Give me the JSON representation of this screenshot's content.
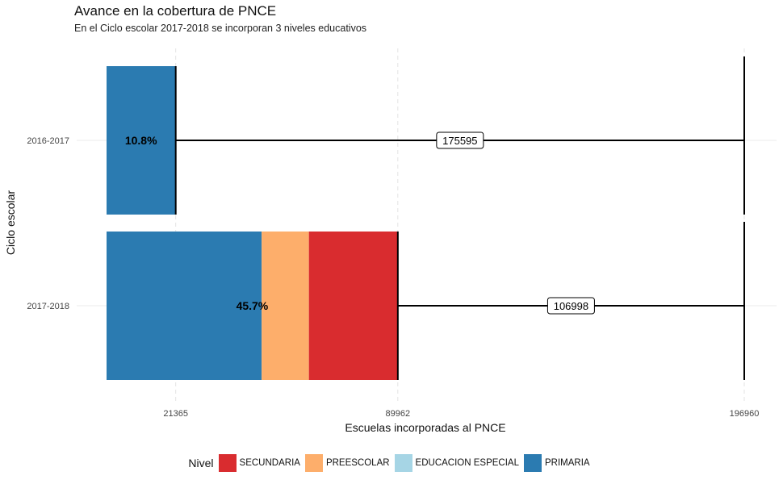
{
  "chart_data": {
    "type": "bar",
    "orientation": "horizontal",
    "stacked": true,
    "title": "Avance en la cobertura de PNCE",
    "subtitle": "En el Ciclo escolar 2017-2018 se incorporan 3 niveles educativos",
    "xlabel": "Escuelas incorporadas al PNCE",
    "ylabel": "Ciclo escolar",
    "xlim": [
      0,
      196960
    ],
    "x_ticks": [
      "21365",
      "89962",
      "196960"
    ],
    "categories": [
      "2016-2017",
      "2017-2018"
    ],
    "series": [
      {
        "name": "PRIMARIA",
        "color": "#2b7bb1",
        "values": [
          21365,
          47900
        ]
      },
      {
        "name": "PREESCOLAR",
        "color": "#fdae6b",
        "values": [
          0,
          14600
        ]
      },
      {
        "name": "EDUCACION ESPECIAL",
        "color": "#a6d5e5",
        "values": [
          0,
          0
        ]
      },
      {
        "name": "SECUNDARIA",
        "color": "#d92c2f",
        "values": [
          0,
          27462
        ]
      }
    ],
    "totals": [
      21365,
      89962
    ],
    "target": 196960,
    "percent_labels": [
      "10.8%",
      "45.7%"
    ],
    "remaining_labels": [
      "175595",
      "106998"
    ],
    "legend": {
      "title": "Nivel",
      "position": "bottom",
      "items": [
        {
          "label": "SECUNDARIA",
          "color": "#d92c2f"
        },
        {
          "label": "PREESCOLAR",
          "color": "#fdae6b"
        },
        {
          "label": "EDUCACION ESPECIAL",
          "color": "#a6d5e5"
        },
        {
          "label": "PRIMARIA",
          "color": "#2b7bb1"
        }
      ]
    },
    "grid": true
  }
}
